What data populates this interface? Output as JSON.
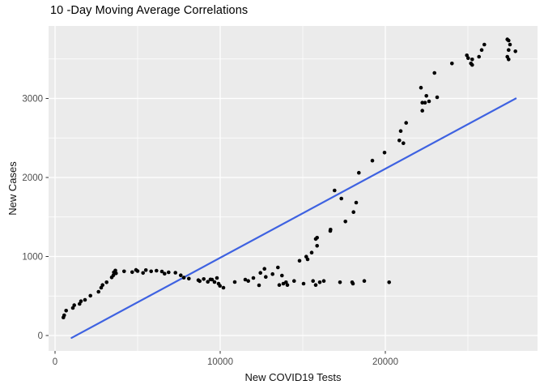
{
  "title": "10 -Day Moving Average Correlations",
  "colors": {
    "background": "#FFFFFF",
    "panel": "#EBEBEB",
    "grid_major": "#FFFFFF",
    "grid_minor": "#FFFFFF",
    "point": "#000000",
    "trend": "#3E62E1",
    "tick_label": "#4D4D4D",
    "tick_mark": "#333333",
    "axis_title": "#111111",
    "title": "#000000"
  },
  "chart_data": {
    "type": "scatter",
    "title": "10 -Day Moving Average Correlations",
    "xlabel": "New COVID19 Tests",
    "ylabel": "New Cases",
    "xlim": [
      -392,
      29216
    ],
    "ylim": [
      -195,
      3918
    ],
    "x_ticks": [
      0,
      10000,
      20000
    ],
    "x_tick_labels": [
      "0",
      "10000",
      "20000"
    ],
    "y_ticks": [
      0,
      1000,
      2000,
      3000
    ],
    "y_tick_labels": [
      "0",
      "1000",
      "2000",
      "3000"
    ],
    "x_minor": [
      5000,
      15000,
      25000
    ],
    "y_minor": [
      500,
      1500,
      2500,
      3500
    ],
    "grid": true,
    "legend": "none",
    "trend_line": {
      "x": [
        1000,
        27900
      ],
      "y": [
        -30,
        3000
      ]
    },
    "points": [
      [
        505,
        229
      ],
      [
        554,
        256
      ],
      [
        672,
        315
      ],
      [
        1078,
        349
      ],
      [
        1162,
        383
      ],
      [
        1485,
        400
      ],
      [
        1569,
        434
      ],
      [
        1814,
        451
      ],
      [
        2142,
        503
      ],
      [
        2632,
        554
      ],
      [
        2794,
        605
      ],
      [
        2877,
        639
      ],
      [
        3122,
        674
      ],
      [
        3430,
        735
      ],
      [
        3529,
        762
      ],
      [
        3560,
        800
      ],
      [
        3650,
        822
      ],
      [
        3691,
        788
      ],
      [
        4181,
        812
      ],
      [
        4671,
        802
      ],
      [
        4900,
        830
      ],
      [
        5000,
        815
      ],
      [
        5328,
        792
      ],
      [
        5500,
        828
      ],
      [
        5819,
        812
      ],
      [
        6142,
        820
      ],
      [
        6471,
        810
      ],
      [
        6632,
        782
      ],
      [
        6877,
        800
      ],
      [
        7289,
        795
      ],
      [
        7613,
        762
      ],
      [
        7800,
        732
      ],
      [
        8103,
        720
      ],
      [
        8676,
        700
      ],
      [
        8760,
        688
      ],
      [
        9005,
        715
      ],
      [
        9250,
        680
      ],
      [
        9412,
        710
      ],
      [
        9510,
        708
      ],
      [
        9657,
        677
      ],
      [
        9804,
        728
      ],
      [
        9902,
        656
      ],
      [
        9985,
        629
      ],
      [
        10196,
        605
      ],
      [
        10882,
        677
      ],
      [
        11520,
        708
      ],
      [
        11701,
        690
      ],
      [
        12010,
        728
      ],
      [
        12353,
        636
      ],
      [
        12436,
        793
      ],
      [
        12681,
        844
      ],
      [
        12760,
        741
      ],
      [
        13171,
        777
      ],
      [
        13495,
        861
      ],
      [
        13578,
        639
      ],
      [
        13740,
        759
      ],
      [
        13824,
        656
      ],
      [
        13985,
        674
      ],
      [
        14069,
        639
      ],
      [
        14476,
        690
      ],
      [
        14804,
        946
      ],
      [
        15049,
        656
      ],
      [
        15211,
        998
      ],
      [
        15294,
        964
      ],
      [
        15539,
        1049
      ],
      [
        15622,
        690
      ],
      [
        15784,
        639
      ],
      [
        15867,
        1238
      ],
      [
        15867,
        1135
      ],
      [
        16029,
        674
      ],
      [
        16274,
        690
      ],
      [
        16681,
        1340
      ],
      [
        17255,
        674
      ],
      [
        17990,
        674
      ],
      [
        18039,
        656
      ],
      [
        18725,
        690
      ],
      [
        20230,
        674
      ],
      [
        15784,
        1221
      ],
      [
        16667,
        1323
      ],
      [
        16927,
        1836
      ],
      [
        17338,
        1733
      ],
      [
        17583,
        1443
      ],
      [
        18073,
        1562
      ],
      [
        18235,
        1682
      ],
      [
        18397,
        2059
      ],
      [
        19216,
        2213
      ],
      [
        19951,
        2315
      ],
      [
        20848,
        2469
      ],
      [
        20931,
        2588
      ],
      [
        21093,
        2434
      ],
      [
        21260,
        2691
      ],
      [
        22240,
        2845
      ],
      [
        22157,
        3136
      ],
      [
        22485,
        3033
      ],
      [
        22240,
        2947
      ],
      [
        22402,
        2947
      ],
      [
        22647,
        2964
      ],
      [
        23137,
        3015
      ],
      [
        22975,
        3323
      ],
      [
        24034,
        3443
      ],
      [
        24936,
        3546
      ],
      [
        25015,
        3511
      ],
      [
        25181,
        3443
      ],
      [
        25260,
        3494
      ],
      [
        25260,
        3425
      ],
      [
        25672,
        3528
      ],
      [
        25833,
        3613
      ],
      [
        25995,
        3682
      ],
      [
        27387,
        3528
      ],
      [
        27466,
        3494
      ],
      [
        27466,
        3613
      ],
      [
        27877,
        3597
      ],
      [
        27466,
        3733
      ],
      [
        27549,
        3682
      ],
      [
        27387,
        3748
      ]
    ]
  }
}
